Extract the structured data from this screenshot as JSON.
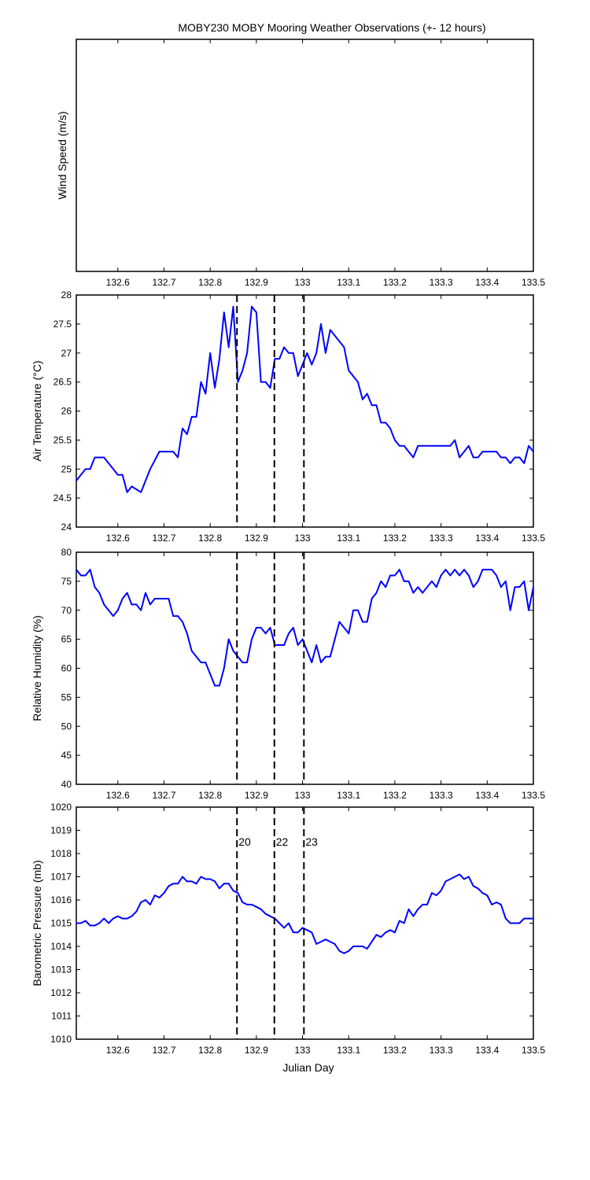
{
  "figure": {
    "title": "MOBY230 MOBY Mooring Weather Observations (+- 12 hours)",
    "xlabel": "Julian Day",
    "colors": {
      "line": "#0000ff",
      "frame": "#000000",
      "event_label": "#cc0000",
      "event_line": "#000000"
    },
    "event_lines_x": [
      132.858,
      132.939,
      133.003
    ],
    "event_labels": [
      "20",
      "22",
      "23"
    ]
  },
  "chart_data": [
    {
      "type": "line",
      "id": "wind",
      "ylabel": "Wind Speed (m/s)",
      "xlim": [
        132.51,
        133.5
      ],
      "xticks": [
        132.6,
        132.7,
        132.8,
        132.9,
        133.0,
        133.1,
        133.2,
        133.3,
        133.4,
        133.5
      ],
      "xtick_labels": [
        "132.6",
        "132.7",
        "132.8",
        "132.9",
        "133",
        "133.1",
        "133.2",
        "133.3",
        "133.4",
        "133.5"
      ],
      "yticks": [],
      "ytick_labels": [],
      "grid": false,
      "show_event_lines": false,
      "series": []
    },
    {
      "type": "line",
      "id": "airtemp",
      "ylabel": "Air Temperature (°C)",
      "xlim": [
        132.51,
        133.5
      ],
      "ylim": [
        24,
        28
      ],
      "xticks": [
        132.6,
        132.7,
        132.8,
        132.9,
        133.0,
        133.1,
        133.2,
        133.3,
        133.4,
        133.5
      ],
      "xtick_labels": [
        "132.6",
        "132.7",
        "132.8",
        "132.9",
        "133",
        "133.1",
        "133.2",
        "133.3",
        "133.4",
        "133.5"
      ],
      "yticks": [
        24,
        24.5,
        25,
        25.5,
        26,
        26.5,
        27,
        27.5,
        28
      ],
      "ytick_labels": [
        "24",
        "24.5",
        "25",
        "25.5",
        "26",
        "26.5",
        "27",
        "27.5",
        "28"
      ],
      "grid": false,
      "show_event_lines": true,
      "series": [
        {
          "x": [
            132.51,
            132.53,
            132.54,
            132.55,
            132.57,
            132.58,
            132.6,
            132.61,
            132.62,
            132.63,
            132.65,
            132.67,
            132.69,
            132.7,
            132.72,
            132.73,
            132.74,
            132.75,
            132.76,
            132.77,
            132.78,
            132.79,
            132.8,
            132.81,
            132.82,
            132.83,
            132.84,
            132.85,
            132.86,
            132.87,
            132.88,
            132.89,
            132.9,
            132.91,
            132.92,
            132.93,
            132.94,
            132.95,
            132.96,
            132.97,
            132.98,
            132.99,
            133.0,
            133.01,
            133.02,
            133.03,
            133.04,
            133.05,
            133.06,
            133.07,
            133.08,
            133.09,
            133.1,
            133.11,
            133.12,
            133.13,
            133.14,
            133.15,
            133.16,
            133.17,
            133.18,
            133.19,
            133.2,
            133.21,
            133.22,
            133.23,
            133.24,
            133.25,
            133.26,
            133.27,
            133.28,
            133.3,
            133.32,
            133.33,
            133.34,
            133.35,
            133.36,
            133.37,
            133.38,
            133.39,
            133.4,
            133.42,
            133.43,
            133.44,
            133.45,
            133.46,
            133.47,
            133.48,
            133.49,
            133.5
          ],
          "y": [
            24.8,
            25.0,
            25.0,
            25.2,
            25.2,
            25.1,
            24.9,
            24.9,
            24.6,
            24.7,
            24.6,
            25.0,
            25.3,
            25.3,
            25.3,
            25.2,
            25.7,
            25.6,
            25.9,
            25.9,
            26.5,
            26.3,
            27.0,
            26.4,
            26.9,
            27.7,
            27.1,
            27.8,
            26.5,
            26.7,
            27.0,
            27.8,
            27.7,
            26.5,
            26.5,
            26.4,
            26.9,
            26.9,
            27.1,
            27.0,
            27.0,
            26.6,
            26.8,
            27.0,
            26.8,
            27.0,
            27.5,
            27.0,
            27.4,
            27.3,
            27.2,
            27.1,
            26.7,
            26.6,
            26.5,
            26.2,
            26.3,
            26.1,
            26.1,
            25.8,
            25.8,
            25.7,
            25.5,
            25.4,
            25.4,
            25.3,
            25.2,
            25.4,
            25.4,
            25.4,
            25.4,
            25.4,
            25.4,
            25.5,
            25.2,
            25.3,
            25.4,
            25.2,
            25.2,
            25.3,
            25.3,
            25.3,
            25.2,
            25.2,
            25.1,
            25.2,
            25.2,
            25.1,
            25.4,
            25.3
          ]
        }
      ]
    },
    {
      "type": "line",
      "id": "humidity",
      "ylabel": "Relative Humidity (%)",
      "xlim": [
        132.51,
        133.5
      ],
      "ylim": [
        40,
        80
      ],
      "xticks": [
        132.6,
        132.7,
        132.8,
        132.9,
        133.0,
        133.1,
        133.2,
        133.3,
        133.4,
        133.5
      ],
      "xtick_labels": [
        "132.6",
        "132.7",
        "132.8",
        "132.9",
        "133",
        "133.1",
        "133.2",
        "133.3",
        "133.4",
        "133.5"
      ],
      "yticks": [
        40,
        45,
        50,
        55,
        60,
        65,
        70,
        75,
        80
      ],
      "ytick_labels": [
        "40",
        "45",
        "50",
        "55",
        "60",
        "65",
        "70",
        "75",
        "80"
      ],
      "grid": false,
      "show_event_lines": true,
      "series": [
        {
          "x": [
            132.51,
            132.52,
            132.53,
            132.54,
            132.55,
            132.56,
            132.57,
            132.58,
            132.59,
            132.6,
            132.61,
            132.62,
            132.63,
            132.64,
            132.65,
            132.66,
            132.67,
            132.68,
            132.69,
            132.7,
            132.71,
            132.72,
            132.73,
            132.74,
            132.75,
            132.76,
            132.77,
            132.78,
            132.79,
            132.8,
            132.81,
            132.82,
            132.83,
            132.84,
            132.85,
            132.86,
            132.87,
            132.88,
            132.89,
            132.9,
            132.91,
            132.92,
            132.93,
            132.94,
            132.95,
            132.96,
            132.97,
            132.98,
            132.99,
            133.0,
            133.01,
            133.02,
            133.03,
            133.04,
            133.05,
            133.06,
            133.07,
            133.08,
            133.09,
            133.1,
            133.11,
            133.12,
            133.13,
            133.14,
            133.15,
            133.16,
            133.17,
            133.18,
            133.19,
            133.2,
            133.21,
            133.22,
            133.23,
            133.24,
            133.25,
            133.26,
            133.27,
            133.28,
            133.29,
            133.3,
            133.31,
            133.32,
            133.33,
            133.34,
            133.35,
            133.36,
            133.37,
            133.38,
            133.39,
            133.4,
            133.41,
            133.42,
            133.43,
            133.44,
            133.45,
            133.46,
            133.47,
            133.48,
            133.49,
            133.5
          ],
          "y": [
            77,
            76,
            76,
            77,
            74,
            73,
            71,
            70,
            69,
            70,
            72,
            73,
            71,
            71,
            70,
            73,
            71,
            72,
            72,
            72,
            72,
            69,
            69,
            68,
            66,
            63,
            62,
            61,
            61,
            59,
            57,
            57,
            60,
            65,
            63,
            62,
            61,
            61,
            65,
            67,
            67,
            66,
            67,
            64,
            64,
            64,
            66,
            67,
            64,
            65,
            63,
            61,
            64,
            61,
            62,
            62,
            65,
            68,
            67,
            66,
            70,
            70,
            68,
            68,
            72,
            73,
            75,
            74,
            76,
            76,
            77,
            75,
            75,
            73,
            74,
            73,
            74,
            75,
            74,
            76,
            77,
            76,
            77,
            76,
            77,
            76,
            74,
            75,
            77,
            77,
            77,
            76,
            74,
            75,
            70,
            74,
            74,
            75,
            70,
            74
          ]
        }
      ]
    },
    {
      "type": "line",
      "id": "pressure",
      "ylabel": "Barometric Pressure (mb)",
      "xlabel": "Julian Day",
      "xlim": [
        132.51,
        133.5
      ],
      "ylim": [
        1010,
        1020
      ],
      "xticks": [
        132.6,
        132.7,
        132.8,
        132.9,
        133.0,
        133.1,
        133.2,
        133.3,
        133.4,
        133.5
      ],
      "xtick_labels": [
        "132.6",
        "132.7",
        "132.8",
        "132.9",
        "133",
        "133.1",
        "133.2",
        "133.3",
        "133.4",
        "133.5"
      ],
      "yticks": [
        1010,
        1011,
        1012,
        1013,
        1014,
        1015,
        1016,
        1017,
        1018,
        1019,
        1020
      ],
      "ytick_labels": [
        "1010",
        "1011",
        "1012",
        "1013",
        "1014",
        "1015",
        "1016",
        "1017",
        "1018",
        "1019",
        "1020"
      ],
      "grid": false,
      "show_event_lines": true,
      "series": [
        {
          "x": [
            132.51,
            132.52,
            132.53,
            132.54,
            132.55,
            132.56,
            132.57,
            132.58,
            132.59,
            132.6,
            132.61,
            132.62,
            132.63,
            132.64,
            132.65,
            132.66,
            132.67,
            132.68,
            132.69,
            132.7,
            132.71,
            132.72,
            132.73,
            132.74,
            132.75,
            132.76,
            132.77,
            132.78,
            132.79,
            132.8,
            132.81,
            132.82,
            132.83,
            132.84,
            132.85,
            132.86,
            132.87,
            132.88,
            132.89,
            132.9,
            132.91,
            132.92,
            132.93,
            132.94,
            132.95,
            132.96,
            132.97,
            132.98,
            132.99,
            133.0,
            133.01,
            133.02,
            133.03,
            133.04,
            133.05,
            133.06,
            133.07,
            133.08,
            133.09,
            133.1,
            133.11,
            133.12,
            133.13,
            133.14,
            133.15,
            133.16,
            133.17,
            133.18,
            133.19,
            133.2,
            133.21,
            133.22,
            133.23,
            133.24,
            133.25,
            133.26,
            133.27,
            133.28,
            133.29,
            133.3,
            133.31,
            133.32,
            133.33,
            133.34,
            133.35,
            133.36,
            133.37,
            133.38,
            133.39,
            133.4,
            133.41,
            133.42,
            133.43,
            133.44,
            133.45,
            133.46,
            133.47,
            133.48,
            133.49,
            133.5
          ],
          "y": [
            1015.0,
            1015.0,
            1015.1,
            1014.9,
            1014.9,
            1015.0,
            1015.2,
            1015.0,
            1015.2,
            1015.3,
            1015.2,
            1015.2,
            1015.3,
            1015.5,
            1015.9,
            1016.0,
            1015.8,
            1016.2,
            1016.1,
            1016.3,
            1016.6,
            1016.7,
            1016.7,
            1017.0,
            1016.8,
            1016.8,
            1016.7,
            1017.0,
            1016.9,
            1016.9,
            1016.8,
            1016.5,
            1016.7,
            1016.7,
            1016.4,
            1016.3,
            1015.9,
            1015.8,
            1015.8,
            1015.7,
            1015.6,
            1015.4,
            1015.3,
            1015.2,
            1015.0,
            1014.8,
            1015.0,
            1014.6,
            1014.6,
            1014.8,
            1014.7,
            1014.6,
            1014.1,
            1014.2,
            1014.3,
            1014.2,
            1014.1,
            1013.8,
            1013.7,
            1013.8,
            1014.0,
            1014.0,
            1014.0,
            1013.9,
            1014.2,
            1014.5,
            1014.4,
            1014.6,
            1014.7,
            1014.6,
            1015.1,
            1015.0,
            1015.6,
            1015.3,
            1015.6,
            1015.8,
            1015.8,
            1016.3,
            1016.2,
            1016.4,
            1016.8,
            1016.9,
            1017.0,
            1017.1,
            1016.9,
            1017.0,
            1016.6,
            1016.5,
            1016.3,
            1016.2,
            1015.8,
            1015.9,
            1015.8,
            1015.2,
            1015.0,
            1015.0,
            1015.0,
            1015.2,
            1015.2,
            1015.2
          ]
        }
      ]
    }
  ]
}
